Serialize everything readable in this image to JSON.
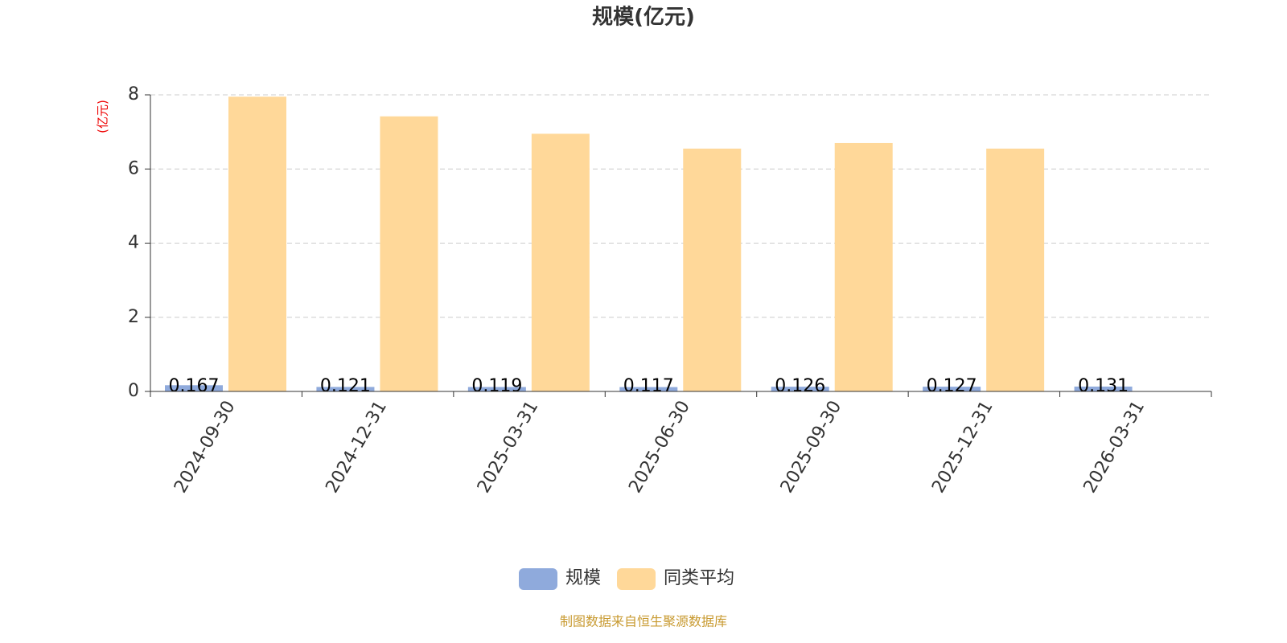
{
  "chart_data": {
    "type": "bar",
    "title": "规模(亿元)",
    "y_label": "(亿元)",
    "categories": [
      "2024-09-30",
      "2024-12-31",
      "2025-03-31",
      "2025-06-30",
      "2025-09-30",
      "2025-12-31",
      "2026-03-31"
    ],
    "series": [
      {
        "name": "规模",
        "color": "#8faadc",
        "values": [
          0.167,
          0.121,
          0.119,
          0.117,
          0.126,
          0.127,
          0.131
        ],
        "show_labels": true
      },
      {
        "name": "同类平均",
        "color": "#ffd899",
        "values": [
          7.95,
          7.42,
          6.95,
          6.55,
          6.7,
          6.55,
          null
        ],
        "show_labels": false
      }
    ],
    "ylim": [
      0,
      8
    ],
    "yticks": [
      0,
      2,
      4,
      6,
      8
    ],
    "grid": true,
    "legend": "bottom",
    "source": "制图数据来自恒生聚源数据库"
  }
}
